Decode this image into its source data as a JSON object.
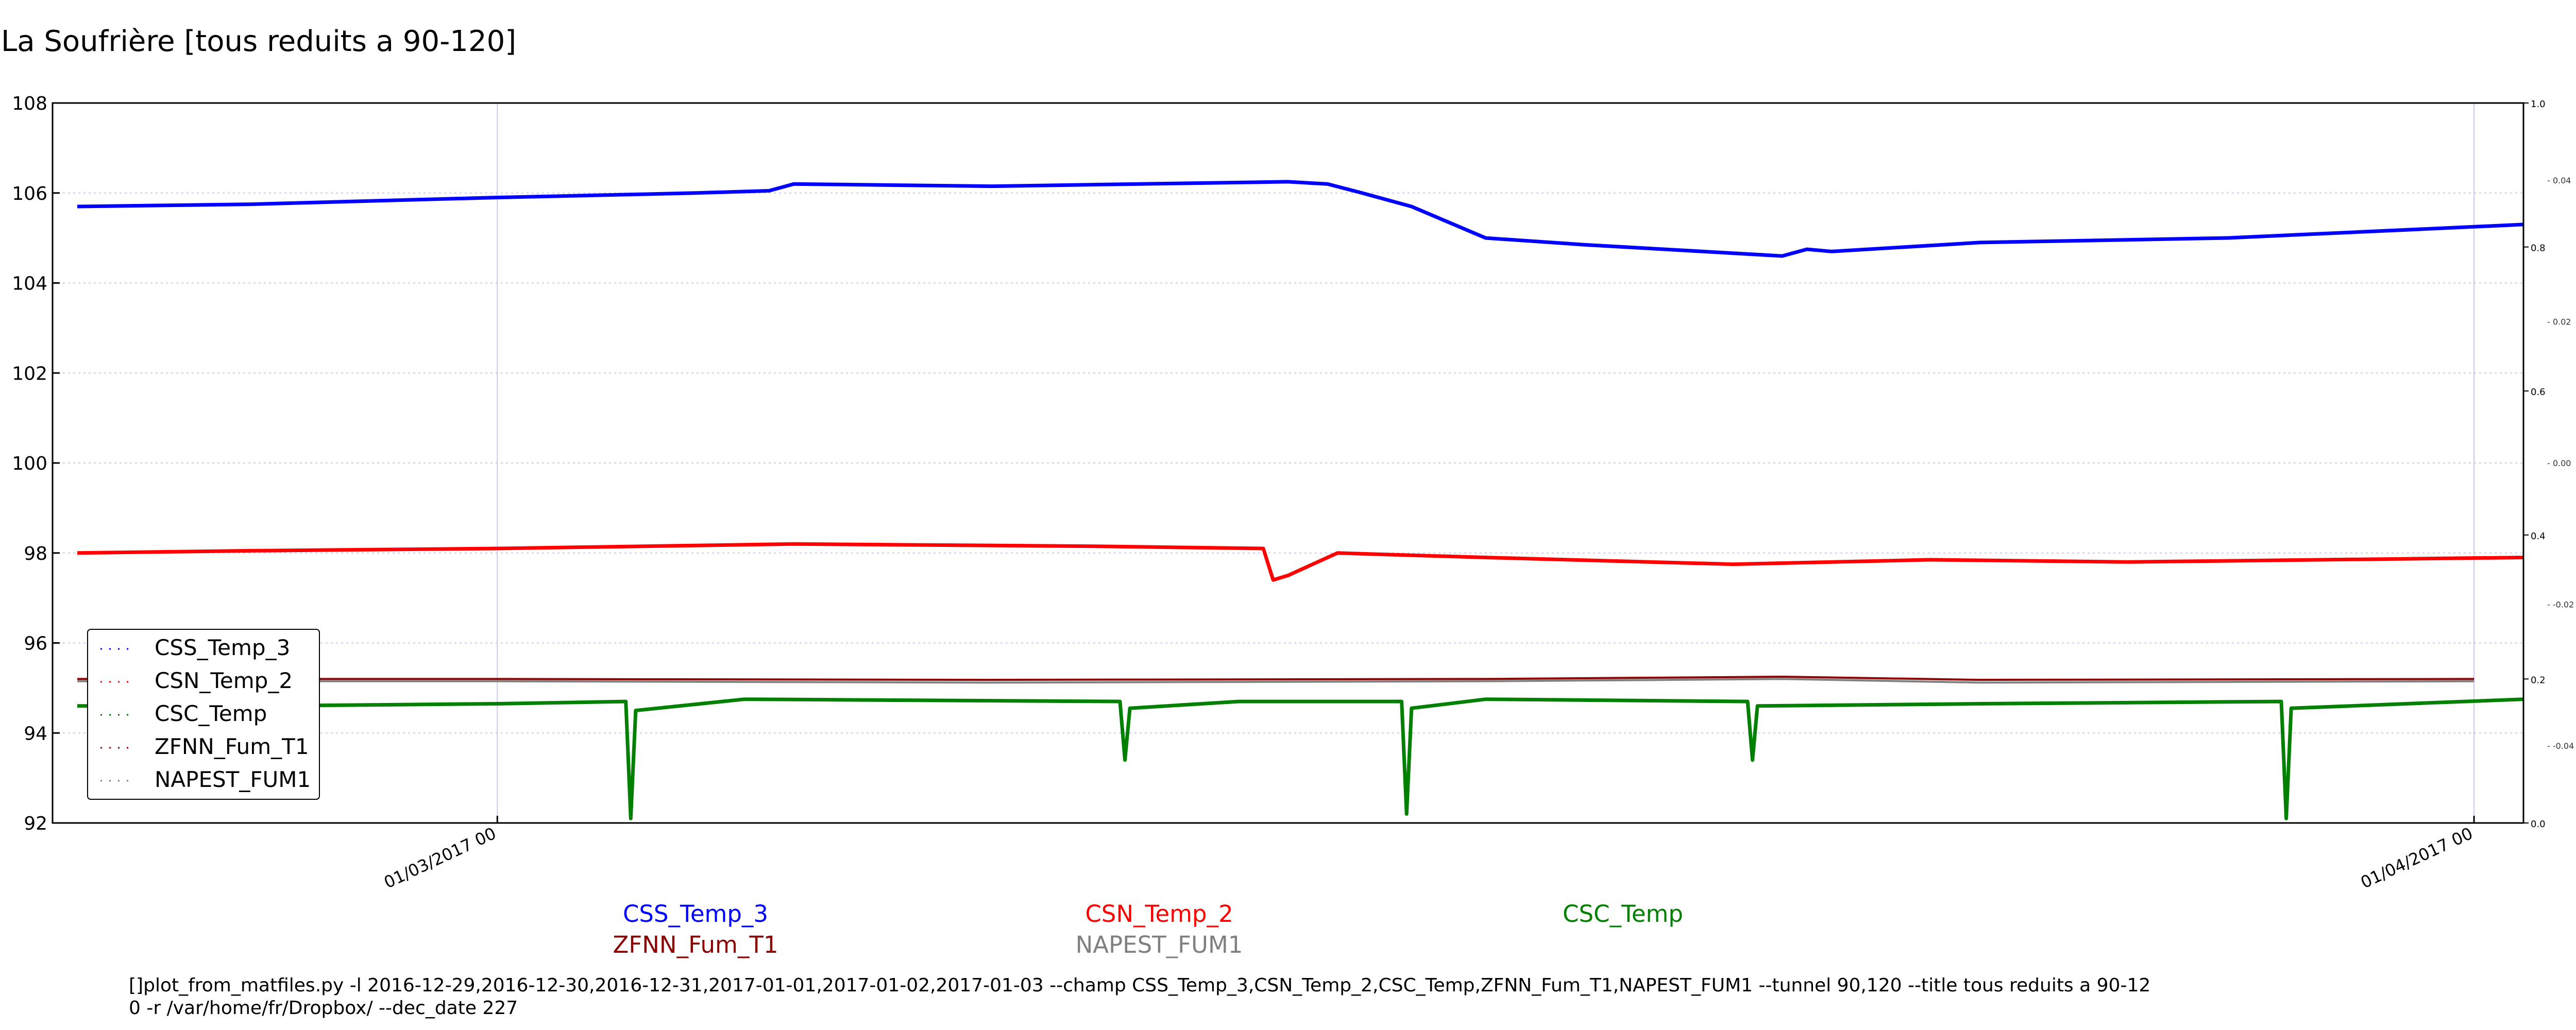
{
  "title": "La Soufrière [tous reduits a 90-120]",
  "command_line": [
    "[]plot_from_matfiles.py -l 2016-12-29,2016-12-30,2016-12-31,2017-01-01,2017-01-02,2017-01-03 --champ CSS_Temp_3,CSN_Temp_2,CSC_Temp,ZFNN_Fum_T1,NAPEST_FUM1 --tunnel 90,120 --title tous reduits a 90-12",
    "0 -r /var/home/fr/Dropbox/ --dec_date 227"
  ],
  "colors": {
    "CSS_Temp_3": "#0000ff",
    "CSN_Temp_2": "#ff0000",
    "CSC_Temp": "#008000",
    "ZFNN_Fum_T1": "#8b0000",
    "NAPEST_FUM1": "#808080",
    "grid": "#c8c8f0"
  },
  "legend": [
    "CSS_Temp_3",
    "CSN_Temp_2",
    "CSC_Temp",
    "ZFNN_Fum_T1",
    "NAPEST_FUM1"
  ],
  "bottom_labels": [
    {
      "text": "CSS_Temp_3",
      "series": "CSS_Temp_3"
    },
    {
      "text": "CSN_Temp_2",
      "series": "CSN_Temp_2"
    },
    {
      "text": "CSC_Temp",
      "series": "CSC_Temp"
    },
    {
      "text": "ZFNN_Fum_T1",
      "series": "ZFNN_Fum_T1"
    },
    {
      "text": "NAPEST_FUM1",
      "series": "NAPEST_FUM1"
    }
  ],
  "chart_data": {
    "type": "line",
    "title": "La Soufrière [tous reduits a 90-120]",
    "xlabel": "",
    "ylabel": "",
    "ylim": [
      92,
      108
    ],
    "xlim": [
      -0.9,
      4.1
    ],
    "x_unit": "days since 01/03/2017 00",
    "yticks": [
      92,
      94,
      96,
      98,
      100,
      102,
      104,
      106,
      108
    ],
    "xticks": [
      {
        "value": 0,
        "label": "01/03/2017 00"
      },
      {
        "value": 4,
        "label": "01/04/2017 00"
      }
    ],
    "right_axis_outer_ticks": [
      "0.0",
      "0.2",
      "0.4",
      "0.6",
      "0.8",
      "1.0"
    ],
    "right_axis_inner_ticks": [
      "-0.04",
      "-0.02",
      "0.00",
      "0.02",
      "0.04"
    ],
    "grid": true,
    "legend_position": "lower-left",
    "series": [
      {
        "name": "CSS_Temp_3",
        "x": [
          -0.85,
          -0.5,
          0,
          0.4,
          0.55,
          0.6,
          1.0,
          1.6,
          1.68,
          1.75,
          1.85,
          2.0,
          2.2,
          2.6,
          2.65,
          2.7,
          3.0,
          3.5,
          4.0,
          4.1
        ],
        "values": [
          105.7,
          105.75,
          105.9,
          106.0,
          106.05,
          106.2,
          106.15,
          106.25,
          106.2,
          106.0,
          105.7,
          105.0,
          104.85,
          104.6,
          104.75,
          104.7,
          104.9,
          105.0,
          105.25,
          105.3
        ]
      },
      {
        "name": "CSN_Temp_2",
        "x": [
          -0.85,
          -0.5,
          0,
          0.6,
          1.2,
          1.55,
          1.57,
          1.6,
          1.7,
          2.0,
          2.5,
          2.9,
          3.3,
          4.1
        ],
        "values": [
          98.0,
          98.05,
          98.1,
          98.2,
          98.15,
          98.1,
          97.4,
          97.5,
          98.0,
          97.9,
          97.75,
          97.85,
          97.8,
          97.9
        ]
      },
      {
        "name": "CSC_Temp",
        "x": [
          -0.85,
          -0.5,
          0,
          0.26,
          0.27,
          0.28,
          0.5,
          1.26,
          1.27,
          1.28,
          1.5,
          1.83,
          1.84,
          1.85,
          2.0,
          2.53,
          2.54,
          2.55,
          3.0,
          3.61,
          3.62,
          3.63,
          4.1
        ],
        "values": [
          94.6,
          94.6,
          94.65,
          94.7,
          92.1,
          94.5,
          94.75,
          94.7,
          93.4,
          94.55,
          94.7,
          94.7,
          92.2,
          94.55,
          94.75,
          94.7,
          93.4,
          94.6,
          94.65,
          94.7,
          92.1,
          94.55,
          94.75
        ]
      },
      {
        "name": "ZFNN_Fum_T1",
        "x": [
          -0.85,
          0,
          1,
          2,
          2.6,
          3,
          4
        ],
        "values": [
          95.2,
          95.2,
          95.18,
          95.2,
          95.25,
          95.18,
          95.2
        ]
      },
      {
        "name": "NAPEST_FUM1",
        "x": [
          -0.85,
          0,
          1,
          2,
          2.6,
          3,
          4
        ],
        "values": [
          95.15,
          95.15,
          95.12,
          95.15,
          95.2,
          95.12,
          95.15
        ]
      }
    ]
  }
}
